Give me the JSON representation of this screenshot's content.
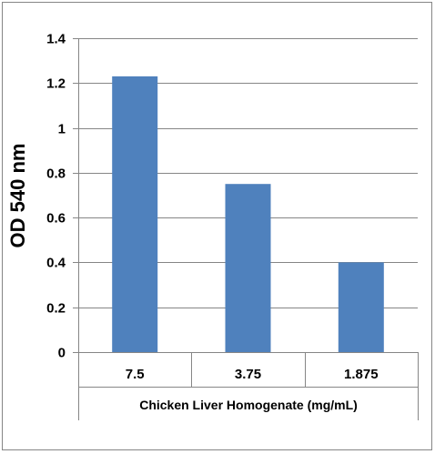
{
  "chart_data": {
    "type": "bar",
    "categories": [
      "7.5",
      "3.75",
      "1.875"
    ],
    "values": [
      1.23,
      0.75,
      0.4
    ],
    "title": "",
    "xlabel": "Chicken Liver Homogenate (mg/mL)",
    "ylabel": "OD 540 nm",
    "ylim": [
      0,
      1.4
    ],
    "yticks": [
      "0",
      "0.2",
      "0.4",
      "0.6",
      "0.8",
      "1",
      "1.2",
      "1.4"
    ],
    "grid": true,
    "legend": "none",
    "colors": {
      "bar": "#4f81bd",
      "grid": "#868686",
      "axis": "#868686",
      "frame": "#868686"
    }
  }
}
